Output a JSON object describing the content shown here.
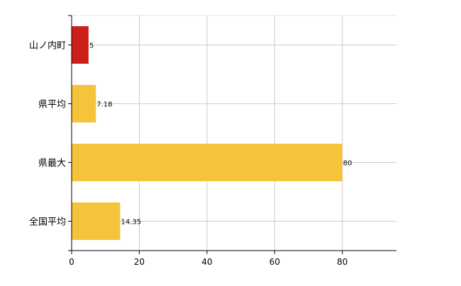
{
  "chart_data": {
    "type": "bar",
    "orientation": "horizontal",
    "categories": [
      "山ノ内町",
      "県平均",
      "県最大",
      "全国平均"
    ],
    "values": [
      5,
      7.18,
      80,
      14.35
    ],
    "value_labels": [
      "5",
      "7.18",
      "80",
      "14.35"
    ],
    "bar_colors": [
      "#cc1f1a",
      "#f5c43a",
      "#f5c43a",
      "#f5c43a"
    ],
    "xlim": [
      0,
      96
    ],
    "xticks": [
      0,
      20,
      40,
      60,
      80
    ],
    "grid": true,
    "legend": "none",
    "title": "",
    "xlabel": "",
    "ylabel": ""
  }
}
